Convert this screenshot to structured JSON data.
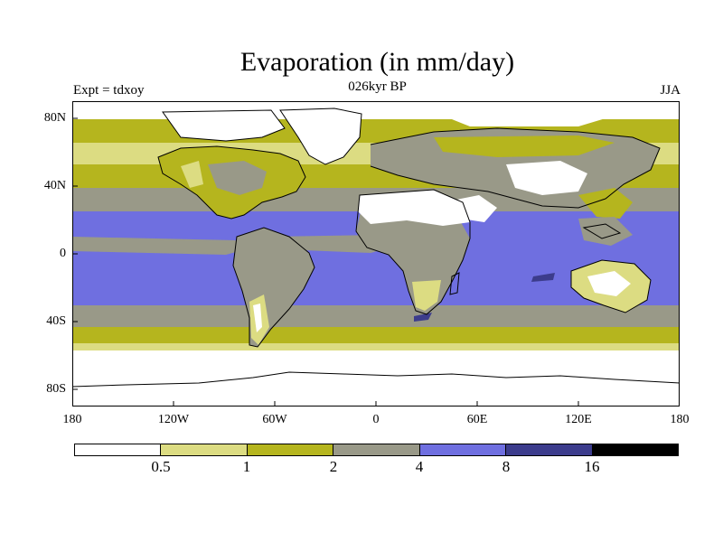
{
  "title": "Evaporation (in mm/day)",
  "subtitle": "026kyr BP",
  "left_label": "Expt = tdxoy",
  "right_label": "JJA",
  "y_ticks": [
    "80N",
    "40N",
    "0",
    "40S",
    "80S"
  ],
  "x_ticks": [
    "180",
    "120W",
    "60W",
    "0",
    "60E",
    "120E",
    "180"
  ],
  "legend": {
    "colors": [
      "#ffffff",
      "#dcdc82",
      "#b5b51e",
      "#999988",
      "#6f6fe0",
      "#3c3c8c",
      "#000000"
    ],
    "labels": [
      "0.5",
      "1",
      "2",
      "4",
      "8",
      "16"
    ]
  }
}
